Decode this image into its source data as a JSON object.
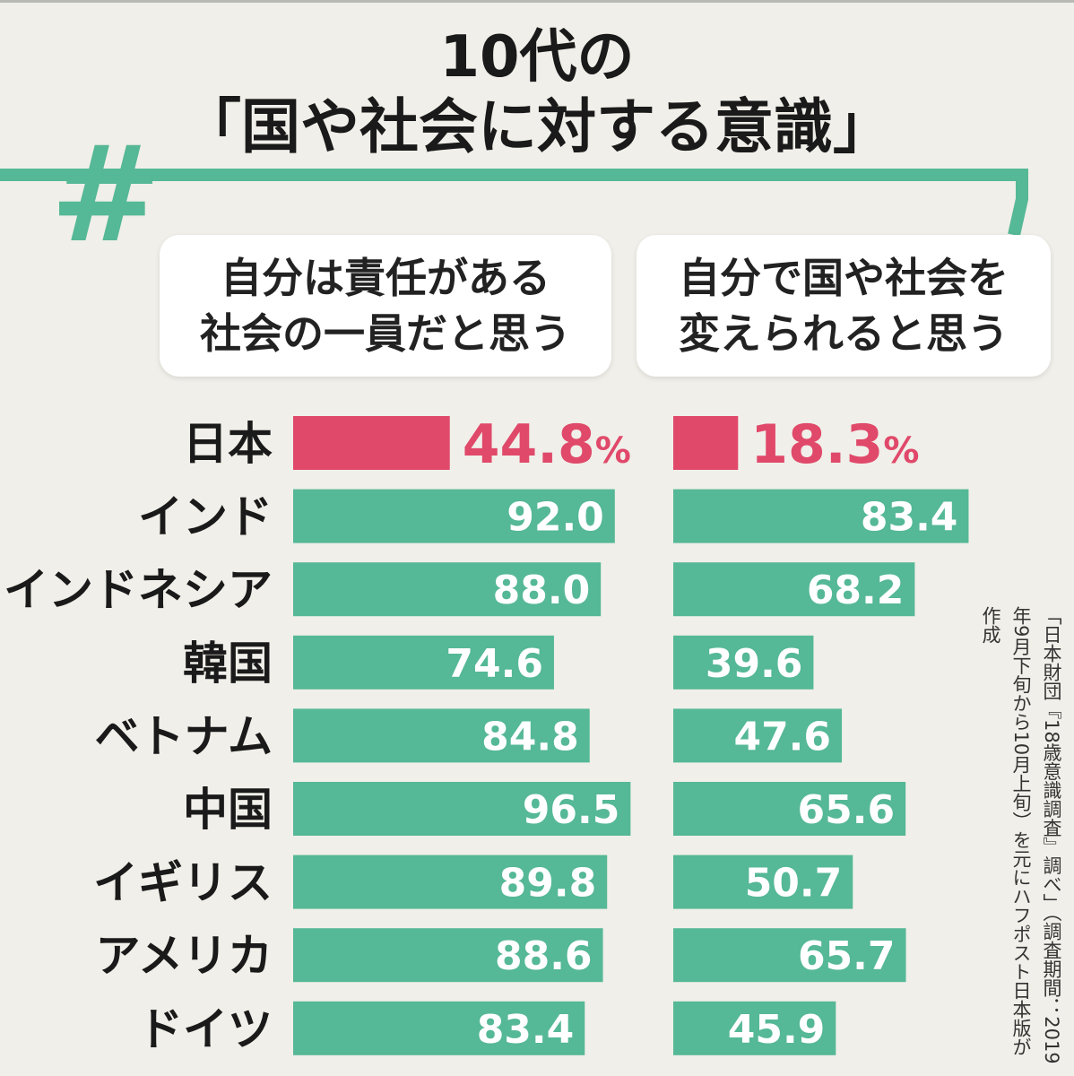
{
  "title_line1": "10代の",
  "title_line2": "「国や社会に対する意識」",
  "hash_symbol": "#",
  "colors": {
    "accent": "#55b896",
    "highlight": "#e0496a",
    "background": "#f0efe9",
    "value_text": "#ffffff",
    "label_text": "#1a1a1a"
  },
  "chart_data": [
    {
      "type": "bar",
      "orientation": "horizontal",
      "title_lines": [
        "自分は責任がある",
        "社会の一員だと思う"
      ],
      "categories": [
        "日本",
        "インド",
        "インドネシア",
        "韓国",
        "ベトナム",
        "中国",
        "イギリス",
        "アメリカ",
        "ドイツ"
      ],
      "values": [
        44.8,
        92.0,
        88.0,
        74.6,
        84.8,
        96.5,
        89.8,
        88.6,
        83.4
      ],
      "value_labels": [
        "44.8",
        "92.0",
        "88.0",
        "74.6",
        "84.8",
        "96.5",
        "89.8",
        "88.6",
        "83.4"
      ],
      "unit": "%",
      "highlight_index": 0
    },
    {
      "type": "bar",
      "orientation": "horizontal",
      "title_lines": [
        "自分で国や社会を",
        "変えられると思う"
      ],
      "categories": [
        "日本",
        "インド",
        "インドネシア",
        "韓国",
        "ベトナム",
        "中国",
        "イギリス",
        "アメリカ",
        "ドイツ"
      ],
      "values": [
        18.3,
        83.4,
        68.2,
        39.6,
        47.6,
        65.6,
        50.7,
        65.7,
        45.9
      ],
      "value_labels": [
        "18.3",
        "83.4",
        "68.2",
        "39.6",
        "47.6",
        "65.6",
        "50.7",
        "65.7",
        "45.9"
      ],
      "unit": "%",
      "highlight_index": 0
    }
  ],
  "source_note": "「日本財団『18歳意識調査』調べ」（調査期間：2019年9月下旬から10月上旬）を元にハフポスト日本版が作成"
}
